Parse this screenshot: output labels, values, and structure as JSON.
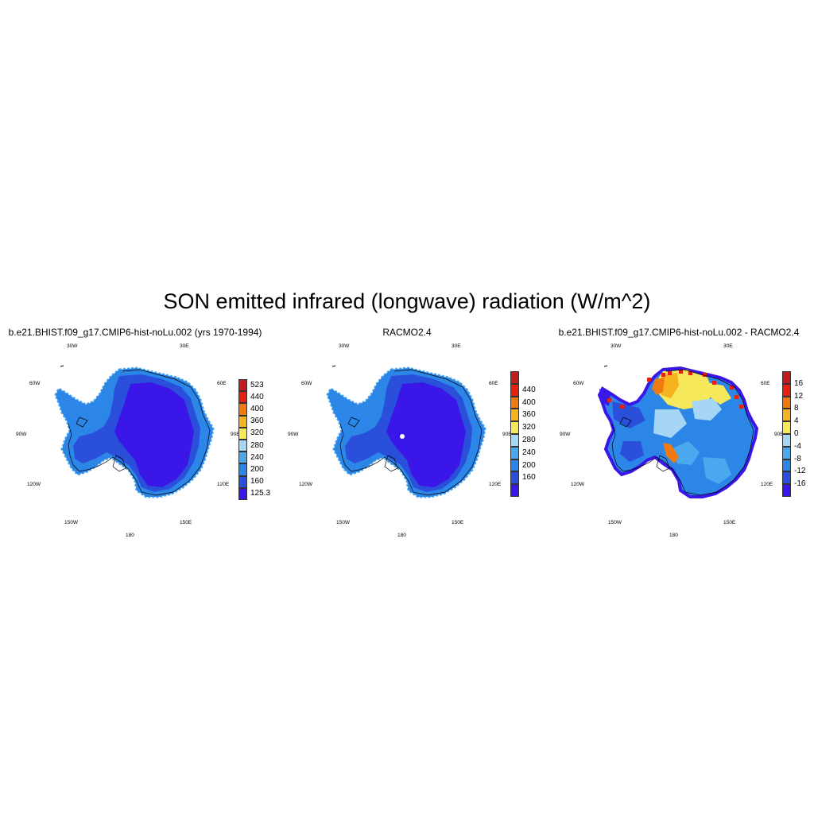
{
  "title": "SON emitted infrared (longwave) radiation (W/m^2)",
  "lon_labels": {
    "w30": "30W",
    "e30": "30E",
    "w60": "60W",
    "e60": "60E",
    "w90": "90W",
    "e90": "90E",
    "w120": "120W",
    "e120": "120E",
    "w150": "150W",
    "e150": "150E",
    "s180": "180"
  },
  "panels": [
    {
      "title": "b.e21.BHIST.f09_g17.CMIP6-hist-noLu.002 (yrs 1970-1994)",
      "colorbar": {
        "colors": [
          "#3a17e8",
          "#2a4fdb",
          "#2c86e8",
          "#4aa8ef",
          "#a6d6f5",
          "#f5e85a",
          "#f6b21f",
          "#f07a10",
          "#e6200c",
          "#c01e1e"
        ],
        "labels": [
          "125.3",
          "160",
          "200",
          "240",
          "280",
          "320",
          "360",
          "400",
          "440",
          "523"
        ]
      }
    },
    {
      "title": "RACMO2.4",
      "colorbar": {
        "colors": [
          "#3a17e8",
          "#2a4fdb",
          "#2c86e8",
          "#4aa8ef",
          "#a6d6f5",
          "#f5e85a",
          "#f6b21f",
          "#f07a10",
          "#e6200c",
          "#c01e1e"
        ],
        "labels": [
          "160",
          "200",
          "240",
          "280",
          "320",
          "360",
          "400",
          "440"
        ]
      }
    },
    {
      "title": "b.e21.BHIST.f09_g17.CMIP6-hist-noLu.002 - RACMO2.4",
      "colorbar": {
        "colors": [
          "#3a17e8",
          "#2a4fdb",
          "#2c86e8",
          "#4aa8ef",
          "#a6d6f5",
          "#f5e85a",
          "#f6b21f",
          "#f07a10",
          "#e6200c",
          "#c01e1e"
        ],
        "labels": [
          "-16",
          "-12",
          "-8",
          "-4",
          "0",
          "4",
          "8",
          "12",
          "16"
        ]
      }
    }
  ]
}
